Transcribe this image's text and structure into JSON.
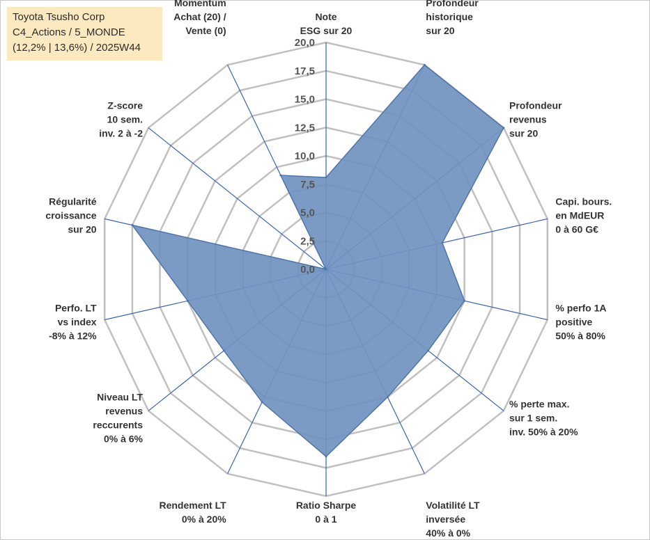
{
  "header": {
    "line1": "Toyota Tsusho Corp",
    "line2": "C4_Actions / 5_MONDE",
    "line3": "(12,2% | 13,6%) / 2025W44"
  },
  "colors": {
    "fill": "#7093c0",
    "stroke": "#4f74a8",
    "grid": "#c0c0c0",
    "spokes": "#3a64b0",
    "legend_bg": "#fde9c0"
  },
  "chart_data": {
    "type": "radar",
    "title": "",
    "r_range": [
      0,
      20
    ],
    "ticks": [
      "0,0",
      "2,5",
      "5,0",
      "7,5",
      "10,0",
      "12,5",
      "15,0",
      "17,5",
      "20,0"
    ],
    "axes": [
      {
        "label": [
          "Note",
          "ESG sur 20"
        ],
        "value": 8.1
      },
      {
        "label": [
          "Profondeur",
          "historique",
          "sur 20"
        ],
        "value": 20.0
      },
      {
        "label": [
          "Profondeur",
          "revenus",
          "sur 20"
        ],
        "value": 20.0
      },
      {
        "label": [
          "Capi. bours.",
          "en MdEUR",
          "0 à 60 G€"
        ],
        "value": 10.5
      },
      {
        "label": [
          "% perfo 1A",
          "positive",
          "50% à 80%"
        ],
        "value": 12.5
      },
      {
        "label": [
          "% perte max.",
          "sur 1 sem.",
          "inv. 50% à 20%"
        ],
        "value": 11.5
      },
      {
        "label": [
          "Volatilité LT",
          "inversée",
          "40% à 0%"
        ],
        "value": 12.5
      },
      {
        "label": [
          "Ratio Sharpe",
          "0 à 1"
        ],
        "value": 16.5
      },
      {
        "label": [
          "Rendement LT",
          "0% à 20%"
        ],
        "value": 13.0
      },
      {
        "label": [
          "Niveau LT",
          "revenus",
          "reccurents",
          "0% à 6%"
        ],
        "value": 11.5
      },
      {
        "label": [
          "Perfo. LT",
          "vs index",
          "-8% à 12%"
        ],
        "value": 12.5
      },
      {
        "label": [
          "Régularité",
          "croissance",
          "sur 20"
        ],
        "value": 17.5
      },
      {
        "label": [
          "Z-score",
          "10 sem.",
          "inv. 2 à -2"
        ],
        "value": 0.0
      },
      {
        "label": [
          "Momentum",
          "Achat (20) /",
          "Vente (0)"
        ],
        "value": 9.2
      }
    ]
  }
}
